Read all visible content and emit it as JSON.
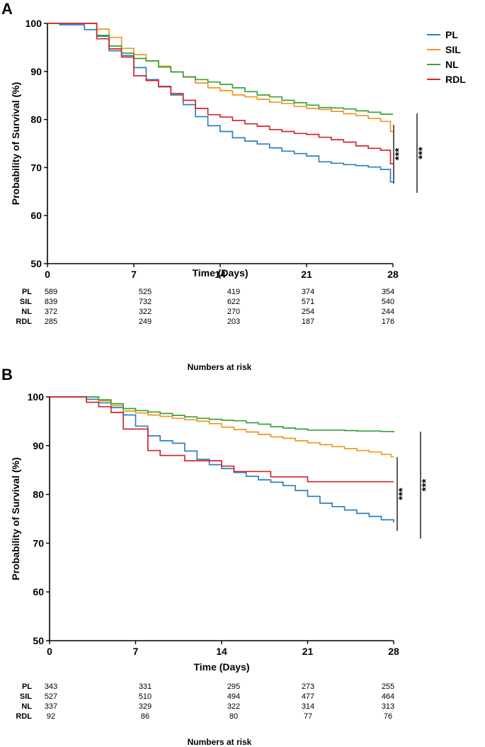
{
  "legend": [
    {
      "name": "PL",
      "color": "#2e7fc1"
    },
    {
      "name": "SIL",
      "color": "#f2961f"
    },
    {
      "name": "NL",
      "color": "#3aa13a"
    },
    {
      "name": "RDL",
      "color": "#d6262e"
    }
  ],
  "risk_title": "Numbers at risk",
  "chart_data": [
    {
      "panel": "A",
      "type": "line",
      "step": true,
      "xlabel": "Time (Days)",
      "ylabel": "Probability of Survival (%)",
      "xlim": [
        0,
        28
      ],
      "ylim": [
        50,
        100
      ],
      "xticks": [
        0,
        7,
        14,
        21,
        28
      ],
      "yticks": [
        50,
        60,
        70,
        80,
        90,
        100
      ],
      "significance": [
        "***",
        "***"
      ],
      "series": [
        {
          "name": "PL",
          "color": "#2e7fc1",
          "x": [
            0,
            1,
            3,
            4,
            5,
            6,
            7,
            8,
            9,
            10,
            11,
            12,
            13,
            14,
            15,
            16,
            17,
            18,
            19,
            20,
            21,
            22,
            23,
            24,
            25,
            26,
            27,
            27.8,
            28
          ],
          "y": [
            100,
            99.7,
            98.7,
            97.3,
            94.3,
            93.3,
            90.8,
            88.3,
            86.9,
            85.1,
            83.1,
            80.6,
            78.7,
            77.5,
            76.2,
            75.5,
            74.9,
            74.1,
            73.4,
            72.9,
            72.4,
            71.2,
            70.9,
            70.6,
            70.4,
            70.1,
            69.6,
            67.0,
            67.0
          ]
        },
        {
          "name": "SIL",
          "color": "#f2961f",
          "x": [
            0,
            4,
            5,
            6,
            7,
            8,
            9,
            10,
            11,
            12,
            13,
            14,
            15,
            16,
            17,
            18,
            19,
            20,
            21,
            22,
            23,
            24,
            25,
            26,
            27,
            27.8,
            28
          ],
          "y": [
            100,
            98.8,
            97.1,
            94.8,
            93.5,
            92.2,
            91.1,
            89.9,
            88.8,
            87.6,
            86.6,
            86.0,
            85.1,
            84.7,
            84.2,
            83.6,
            83.3,
            82.7,
            82.3,
            82.1,
            81.7,
            81.2,
            80.8,
            80.2,
            79.6,
            77.5,
            77.5
          ]
        },
        {
          "name": "NL",
          "color": "#3aa13a",
          "x": [
            0,
            4,
            5,
            6,
            7,
            8,
            9,
            10,
            11,
            12,
            13,
            14,
            15,
            16,
            17,
            18,
            19,
            20,
            21,
            22,
            23,
            24,
            25,
            26,
            27,
            28
          ],
          "y": [
            100,
            97.5,
            95.3,
            93.8,
            92.7,
            92.2,
            90.9,
            89.9,
            88.9,
            88.3,
            87.8,
            87.3,
            86.6,
            85.8,
            85.1,
            84.7,
            84.0,
            83.5,
            83.0,
            82.5,
            82.4,
            82.2,
            81.8,
            81.5,
            81.1,
            81.1
          ]
        },
        {
          "name": "RDL",
          "color": "#d6262e",
          "x": [
            0,
            4,
            5,
            6,
            7,
            8,
            9,
            10,
            11,
            12,
            13,
            14,
            15,
            16,
            17,
            18,
            19,
            20,
            21,
            22,
            23,
            24,
            25,
            26,
            27,
            27.8,
            28
          ],
          "y": [
            100,
            96.8,
            94.7,
            93.0,
            89.1,
            88.1,
            86.8,
            85.4,
            84.0,
            82.3,
            81.0,
            80.5,
            79.8,
            79.1,
            78.6,
            77.9,
            77.5,
            77.1,
            76.9,
            76.3,
            75.8,
            75.3,
            74.5,
            74.0,
            73.6,
            70.8,
            70.8
          ]
        }
      ],
      "risk_table": [
        {
          "group": "PL",
          "values": [
            589,
            525,
            419,
            374,
            354
          ]
        },
        {
          "group": "SIL",
          "values": [
            839,
            732,
            622,
            571,
            540
          ]
        },
        {
          "group": "NL",
          "values": [
            372,
            322,
            270,
            254,
            244
          ]
        },
        {
          "group": "RDL",
          "values": [
            285,
            249,
            203,
            187,
            176
          ]
        }
      ]
    },
    {
      "panel": "B",
      "type": "line",
      "step": true,
      "xlabel": "Time (Days)",
      "ylabel": "Probability of Survival (%)",
      "xlim": [
        0,
        28
      ],
      "ylim": [
        50,
        100
      ],
      "xticks": [
        0,
        7,
        14,
        21,
        28
      ],
      "yticks": [
        50,
        60,
        70,
        80,
        90,
        100
      ],
      "significance": [
        "***",
        "***"
      ],
      "series": [
        {
          "name": "PL",
          "color": "#2e7fc1",
          "x": [
            0,
            3,
            4,
            5,
            6,
            7,
            8,
            9,
            10,
            11,
            12,
            13,
            14,
            15,
            16,
            17,
            18,
            19,
            20,
            21,
            22,
            23,
            24,
            25,
            26,
            27,
            28
          ],
          "y": [
            100,
            99.5,
            98.8,
            97.8,
            96.3,
            94.0,
            92.0,
            91.0,
            90.5,
            88.9,
            87.2,
            86.1,
            85.3,
            84.5,
            83.7,
            83.0,
            82.5,
            81.8,
            80.8,
            79.6,
            78.2,
            77.5,
            76.8,
            76.1,
            75.5,
            74.8,
            74.2
          ]
        },
        {
          "name": "SIL",
          "color": "#f2961f",
          "x": [
            0,
            4,
            5,
            6,
            7,
            8,
            9,
            10,
            11,
            12,
            13,
            14,
            15,
            16,
            17,
            18,
            19,
            20,
            21,
            22,
            23,
            24,
            25,
            26,
            27,
            27.8,
            28
          ],
          "y": [
            100,
            99.2,
            98.2,
            97.1,
            96.7,
            96.3,
            96.0,
            95.6,
            95.3,
            95.0,
            94.5,
            93.8,
            93.3,
            92.8,
            92.3,
            91.8,
            91.5,
            91.0,
            90.6,
            90.2,
            89.8,
            89.4,
            89.0,
            88.7,
            88.2,
            87.7,
            87.7
          ]
        },
        {
          "name": "NL",
          "color": "#3aa13a",
          "x": [
            0,
            4,
            5,
            6,
            7,
            8,
            9,
            10,
            11,
            12,
            13,
            14,
            15,
            16,
            17,
            18,
            19,
            20,
            21,
            22,
            23,
            24,
            25,
            26,
            27,
            28
          ],
          "y": [
            100,
            99.4,
            98.6,
            97.6,
            97.2,
            96.9,
            96.6,
            96.2,
            95.9,
            95.6,
            95.4,
            95.2,
            95.1,
            94.7,
            94.4,
            93.9,
            93.6,
            93.4,
            93.2,
            93.2,
            93.2,
            93.1,
            93.0,
            93.0,
            92.9,
            92.7
          ]
        },
        {
          "name": "RDL",
          "color": "#d6262e",
          "x": [
            0,
            3,
            4,
            5,
            6,
            8,
            9,
            11,
            14,
            15,
            18,
            21,
            28
          ],
          "y": [
            100,
            98.9,
            98.0,
            96.8,
            93.4,
            89.0,
            88.0,
            86.9,
            85.8,
            84.7,
            83.6,
            82.6,
            82.6
          ]
        }
      ],
      "risk_table": [
        {
          "group": "PL",
          "values": [
            343,
            331,
            295,
            273,
            255
          ]
        },
        {
          "group": "SIL",
          "values": [
            527,
            510,
            494,
            477,
            464
          ]
        },
        {
          "group": "NL",
          "values": [
            337,
            329,
            322,
            314,
            313
          ]
        },
        {
          "group": "RDL",
          "values": [
            92,
            86,
            80,
            77,
            76
          ]
        }
      ]
    }
  ]
}
